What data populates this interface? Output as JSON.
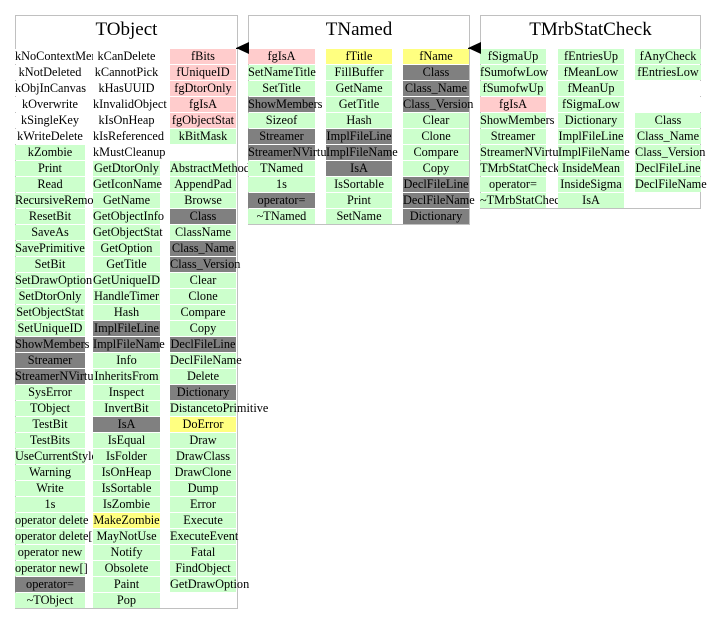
{
  "colors": {
    "white": "#ffffff",
    "green": "#ccffcc",
    "pink": "#ffcccc",
    "gray": "#808080",
    "yellow": "#ffff80",
    "border": "#c0c0c0"
  },
  "classes": [
    {
      "name": "TObject",
      "columns": [
        [
          [
            "kNoContextMenu",
            "white"
          ],
          [
            "kNotDeleted",
            "white"
          ],
          [
            "kObjInCanvas",
            "white"
          ],
          [
            "kOverwrite",
            "white"
          ],
          [
            "kSingleKey",
            "white"
          ],
          [
            "kWriteDelete",
            "white"
          ],
          [
            "kZombie",
            "green"
          ],
          [
            "Print",
            "green"
          ],
          [
            "Read",
            "green"
          ],
          [
            "RecursiveRemove",
            "green"
          ],
          [
            "ResetBit",
            "green"
          ],
          [
            "SaveAs",
            "green"
          ],
          [
            "SavePrimitive",
            "green"
          ],
          [
            "SetBit",
            "green"
          ],
          [
            "SetDrawOption",
            "green"
          ],
          [
            "SetDtorOnly",
            "green"
          ],
          [
            "SetObjectStat",
            "green"
          ],
          [
            "SetUniqueID",
            "green"
          ],
          [
            "ShowMembers",
            "gray"
          ],
          [
            "Streamer",
            "gray"
          ],
          [
            "StreamerNVirtual",
            "gray"
          ],
          [
            "SysError",
            "green"
          ],
          [
            "TObject",
            "green"
          ],
          [
            "TestBit",
            "green"
          ],
          [
            "TestBits",
            "green"
          ],
          [
            "UseCurrentStyle",
            "green"
          ],
          [
            "Warning",
            "green"
          ],
          [
            "Write",
            "green"
          ],
          [
            "1s",
            "green"
          ],
          [
            "operator delete",
            "green"
          ],
          [
            "operator delete[]",
            "green"
          ],
          [
            "operator new",
            "green"
          ],
          [
            "operator new[]",
            "green"
          ],
          [
            "operator=",
            "gray"
          ],
          [
            "~TObject",
            "green"
          ]
        ],
        [
          [
            "kCanDelete",
            "white"
          ],
          [
            "kCannotPick",
            "white"
          ],
          [
            "kHasUUID",
            "white"
          ],
          [
            "kInvalidObject",
            "white"
          ],
          [
            "kIsOnHeap",
            "white"
          ],
          [
            "kIsReferenced",
            "white"
          ],
          [
            "kMustCleanup",
            "white"
          ],
          [
            "GetDtorOnly",
            "green"
          ],
          [
            "GetIconName",
            "green"
          ],
          [
            "GetName",
            "green"
          ],
          [
            "GetObjectInfo",
            "green"
          ],
          [
            "GetObjectStat",
            "green"
          ],
          [
            "GetOption",
            "green"
          ],
          [
            "GetTitle",
            "green"
          ],
          [
            "GetUniqueID",
            "green"
          ],
          [
            "HandleTimer",
            "green"
          ],
          [
            "Hash",
            "green"
          ],
          [
            "ImplFileLine",
            "gray"
          ],
          [
            "ImplFileName",
            "gray"
          ],
          [
            "Info",
            "green"
          ],
          [
            "InheritsFrom",
            "green"
          ],
          [
            "Inspect",
            "green"
          ],
          [
            "InvertBit",
            "green"
          ],
          [
            "IsA",
            "gray"
          ],
          [
            "IsEqual",
            "green"
          ],
          [
            "IsFolder",
            "green"
          ],
          [
            "IsOnHeap",
            "green"
          ],
          [
            "IsSortable",
            "green"
          ],
          [
            "IsZombie",
            "green"
          ],
          [
            "MakeZombie",
            "yellow"
          ],
          [
            "MayNotUse",
            "green"
          ],
          [
            "Notify",
            "green"
          ],
          [
            "Obsolete",
            "green"
          ],
          [
            "Paint",
            "green"
          ],
          [
            "Pop",
            "green"
          ]
        ],
        [
          [
            "fBits",
            "pink"
          ],
          [
            "fUniqueID",
            "pink"
          ],
          [
            "fgDtorOnly",
            "pink"
          ],
          [
            "fgIsA",
            "pink"
          ],
          [
            "fgObjectStat",
            "pink"
          ],
          [
            "kBitMask",
            "green"
          ],
          [
            "",
            "white"
          ],
          [
            "AbstractMethod",
            "green"
          ],
          [
            "AppendPad",
            "green"
          ],
          [
            "Browse",
            "green"
          ],
          [
            "Class",
            "gray"
          ],
          [
            "ClassName",
            "green"
          ],
          [
            "Class_Name",
            "gray"
          ],
          [
            "Class_Version",
            "gray"
          ],
          [
            "Clear",
            "green"
          ],
          [
            "Clone",
            "green"
          ],
          [
            "Compare",
            "green"
          ],
          [
            "Copy",
            "green"
          ],
          [
            "DeclFileLine",
            "gray"
          ],
          [
            "DeclFileName",
            "green"
          ],
          [
            "Delete",
            "green"
          ],
          [
            "Dictionary",
            "gray"
          ],
          [
            "DistancetoPrimitive",
            "green"
          ],
          [
            "DoError",
            "yellow"
          ],
          [
            "Draw",
            "green"
          ],
          [
            "DrawClass",
            "green"
          ],
          [
            "DrawClone",
            "green"
          ],
          [
            "Dump",
            "green"
          ],
          [
            "Error",
            "green"
          ],
          [
            "Execute",
            "green"
          ],
          [
            "ExecuteEvent",
            "green"
          ],
          [
            "Fatal",
            "green"
          ],
          [
            "FindObject",
            "green"
          ],
          [
            "GetDrawOption",
            "green"
          ]
        ]
      ]
    },
    {
      "name": "TNamed",
      "columns": [
        [
          [
            "fgIsA",
            "pink"
          ],
          [
            "SetNameTitle",
            "green"
          ],
          [
            "SetTitle",
            "green"
          ],
          [
            "ShowMembers",
            "gray"
          ],
          [
            "Sizeof",
            "green"
          ],
          [
            "Streamer",
            "gray"
          ],
          [
            "StreamerNVirtual",
            "gray"
          ],
          [
            "TNamed",
            "green"
          ],
          [
            "1s",
            "green"
          ],
          [
            "operator=",
            "gray"
          ],
          [
            "~TNamed",
            "green"
          ]
        ],
        [
          [
            "fTitle",
            "yellow"
          ],
          [
            "FillBuffer",
            "green"
          ],
          [
            "GetName",
            "green"
          ],
          [
            "GetTitle",
            "green"
          ],
          [
            "Hash",
            "green"
          ],
          [
            "ImplFileLine",
            "gray"
          ],
          [
            "ImplFileName",
            "gray"
          ],
          [
            "IsA",
            "gray"
          ],
          [
            "IsSortable",
            "green"
          ],
          [
            "Print",
            "green"
          ],
          [
            "SetName",
            "green"
          ]
        ],
        [
          [
            "fName",
            "yellow"
          ],
          [
            "Class",
            "gray"
          ],
          [
            "Class_Name",
            "gray"
          ],
          [
            "Class_Version",
            "gray"
          ],
          [
            "Clear",
            "green"
          ],
          [
            "Clone",
            "green"
          ],
          [
            "Compare",
            "green"
          ],
          [
            "Copy",
            "green"
          ],
          [
            "DeclFileLine",
            "gray"
          ],
          [
            "DeclFileName",
            "gray"
          ],
          [
            "Dictionary",
            "gray"
          ]
        ]
      ]
    },
    {
      "name": "TMrbStatCheck",
      "columns": [
        [
          [
            "fSigmaUp",
            "green"
          ],
          [
            "fSumofwLow",
            "green"
          ],
          [
            "fSumofwUp",
            "green"
          ],
          [
            "fgIsA",
            "pink"
          ],
          [
            "ShowMembers",
            "green"
          ],
          [
            "Streamer",
            "green"
          ],
          [
            "StreamerNVirtual",
            "green"
          ],
          [
            "TMrbStatCheck",
            "green"
          ],
          [
            "operator=",
            "green"
          ],
          [
            "~TMrbStatCheck",
            "green"
          ]
        ],
        [
          [
            "fEntriesUp",
            "green"
          ],
          [
            "fMeanLow",
            "green"
          ],
          [
            "fMeanUp",
            "green"
          ],
          [
            "fSigmaLow",
            "green"
          ],
          [
            "Dictionary",
            "green"
          ],
          [
            "ImplFileLine",
            "green"
          ],
          [
            "ImplFileName",
            "green"
          ],
          [
            "InsideMean",
            "green"
          ],
          [
            "InsideSigma",
            "green"
          ],
          [
            "IsA",
            "green"
          ]
        ],
        [
          [
            "fAnyCheck",
            "green"
          ],
          [
            "fEntriesLow",
            "green"
          ],
          [
            "",
            "white"
          ],
          [
            "",
            "white"
          ],
          [
            "Class",
            "green"
          ],
          [
            "Class_Name",
            "green"
          ],
          [
            "Class_Version",
            "green"
          ],
          [
            "DeclFileLine",
            "green"
          ],
          [
            "DeclFileName",
            "green"
          ]
        ]
      ]
    }
  ]
}
